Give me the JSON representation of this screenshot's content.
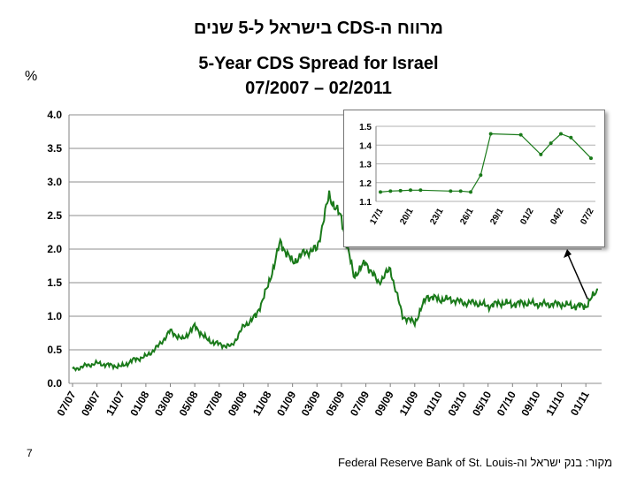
{
  "page": {
    "title_hebrew": "מרווח ה-CDS בישראל ל-5 שנים",
    "title_english": "5-Year CDS Spread for Israel",
    "title_period": "07/2007 – 02/2011",
    "unit": "%",
    "slide_number": "7",
    "source": "מקור: בנק ישראל וה-Federal Reserve Bank of St. Louis"
  },
  "colors": {
    "series": "#1a7a1a",
    "grid": "#8c8c8c",
    "arrow": "#000000"
  },
  "chart_data": [
    {
      "type": "line",
      "title": "",
      "xlabel": "",
      "ylabel": "%",
      "ylim": [
        0,
        4
      ],
      "yticks": [
        "0.0",
        "0.5",
        "1.0",
        "1.5",
        "2.0",
        "2.5",
        "3.0",
        "3.5",
        "4.0"
      ],
      "grid": true,
      "x_tick_labels": [
        "07/07",
        "09/07",
        "11/07",
        "01/08",
        "03/08",
        "05/08",
        "07/08",
        "09/08",
        "11/08",
        "01/09",
        "03/09",
        "05/09",
        "07/09",
        "09/09",
        "11/09",
        "01/10",
        "03/10",
        "05/10",
        "07/10",
        "09/10",
        "11/10",
        "01/11"
      ],
      "series": [
        {
          "x": [
            "07/07",
            "08/07",
            "09/07",
            "10/07",
            "11/07",
            "12/07",
            "01/08",
            "02/08",
            "03/08",
            "04/08",
            "05/08",
            "06/08",
            "07/08",
            "08/08",
            "09/08",
            "10/08",
            "11/08",
            "12/08",
            "01/09",
            "02/09",
            "03/09",
            "04/09",
            "05/09",
            "06/09",
            "07/09",
            "08/09",
            "09/09",
            "10/09",
            "11/09",
            "12/09",
            "01/10",
            "02/10",
            "03/10",
            "04/10",
            "05/10",
            "06/10",
            "07/10",
            "08/10",
            "09/10",
            "10/10",
            "11/10",
            "12/10",
            "01/11",
            "02/11"
          ],
          "values": [
            0.2,
            0.26,
            0.3,
            0.27,
            0.25,
            0.35,
            0.4,
            0.55,
            0.78,
            0.65,
            0.85,
            0.65,
            0.58,
            0.55,
            0.85,
            1.0,
            1.45,
            2.1,
            1.8,
            1.95,
            2.0,
            2.8,
            2.45,
            1.6,
            1.8,
            1.5,
            1.7,
            1.0,
            0.9,
            1.3,
            1.25,
            1.25,
            1.2,
            1.2,
            1.15,
            1.2,
            1.18,
            1.2,
            1.18,
            1.18,
            1.18,
            1.15,
            1.15,
            1.4
          ]
        }
      ]
    },
    {
      "type": "line",
      "title": "",
      "ylim": [
        1.1,
        1.5
      ],
      "yticks": [
        "1.1",
        "1.2",
        "1.3",
        "1.4",
        "1.5"
      ],
      "grid": true,
      "x_tick_labels": [
        "17/1",
        "20/1",
        "23/1",
        "26/1",
        "29/1",
        "01/2",
        "04/2",
        "07/2"
      ],
      "series": [
        {
          "x": [
            "17/1",
            "18/1",
            "19/1",
            "20/1",
            "21/1",
            "24/1",
            "25/1",
            "26/1",
            "27/1",
            "28/1",
            "31/1",
            "02/2",
            "03/2",
            "04/2",
            "05/2",
            "07/2"
          ],
          "values": [
            1.15,
            1.155,
            1.157,
            1.16,
            1.16,
            1.155,
            1.155,
            1.15,
            1.24,
            1.46,
            1.455,
            1.35,
            1.41,
            1.46,
            1.44,
            1.33
          ]
        }
      ]
    }
  ]
}
